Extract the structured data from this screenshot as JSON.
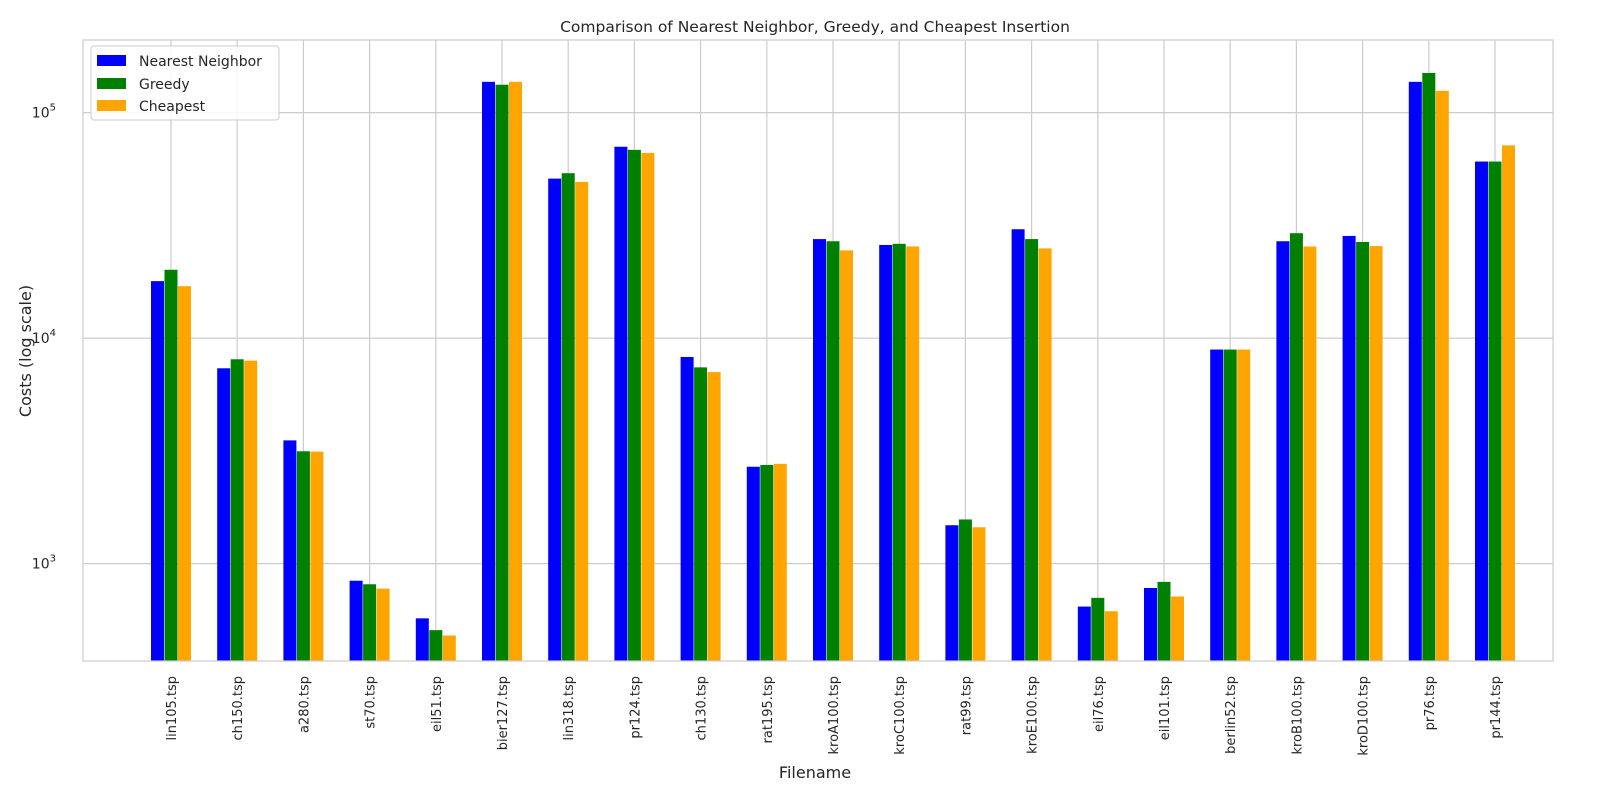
{
  "chart_data": {
    "type": "bar",
    "title": "Comparison of Nearest Neighbor, Greedy, and Cheapest Insertion",
    "xlabel": "Filename",
    "ylabel": "Costs (log scale)",
    "yscale": "log",
    "ylim": [
      370,
      210000
    ],
    "y_ticks": [
      {
        "value": 1000,
        "base": "10",
        "exp": "3"
      },
      {
        "value": 10000,
        "base": "10",
        "exp": "4"
      },
      {
        "value": 100000,
        "base": "10",
        "exp": "5"
      }
    ],
    "grid": true,
    "legend_position": "top-left",
    "categories": [
      "lin105.tsp",
      "ch150.tsp",
      "a280.tsp",
      "st70.tsp",
      "eil51.tsp",
      "bier127.tsp",
      "lin318.tsp",
      "pr124.tsp",
      "ch130.tsp",
      "rat195.tsp",
      "kroA100.tsp",
      "kroC100.tsp",
      "rat99.tsp",
      "kroE100.tsp",
      "eil76.tsp",
      "eil101.tsp",
      "berlin52.tsp",
      "kroB100.tsp",
      "kroD100.tsp",
      "pr76.tsp",
      "pr144.tsp"
    ],
    "series": [
      {
        "name": "Nearest Neighbor",
        "color": "#0000ff",
        "values": [
          17900,
          7350,
          3520,
          840,
          572,
          137000,
          51000,
          70600,
          8250,
          2690,
          27500,
          25900,
          1480,
          30400,
          645,
          780,
          8900,
          26900,
          28400,
          137000,
          60700
        ]
      },
      {
        "name": "Greedy",
        "color": "#008000",
        "values": [
          20100,
          8060,
          3150,
          810,
          507,
          133000,
          53900,
          68400,
          7420,
          2740,
          26900,
          26200,
          1570,
          27500,
          705,
          830,
          8900,
          29200,
          26700,
          150000,
          60700
        ]
      },
      {
        "name": "Cheapest",
        "color": "#ffa500",
        "values": [
          17000,
          7950,
          3140,
          775,
          480,
          137000,
          49300,
          66300,
          7070,
          2770,
          24500,
          25500,
          1450,
          25000,
          615,
          715,
          8900,
          25500,
          25600,
          125000,
          71600
        ]
      }
    ]
  }
}
